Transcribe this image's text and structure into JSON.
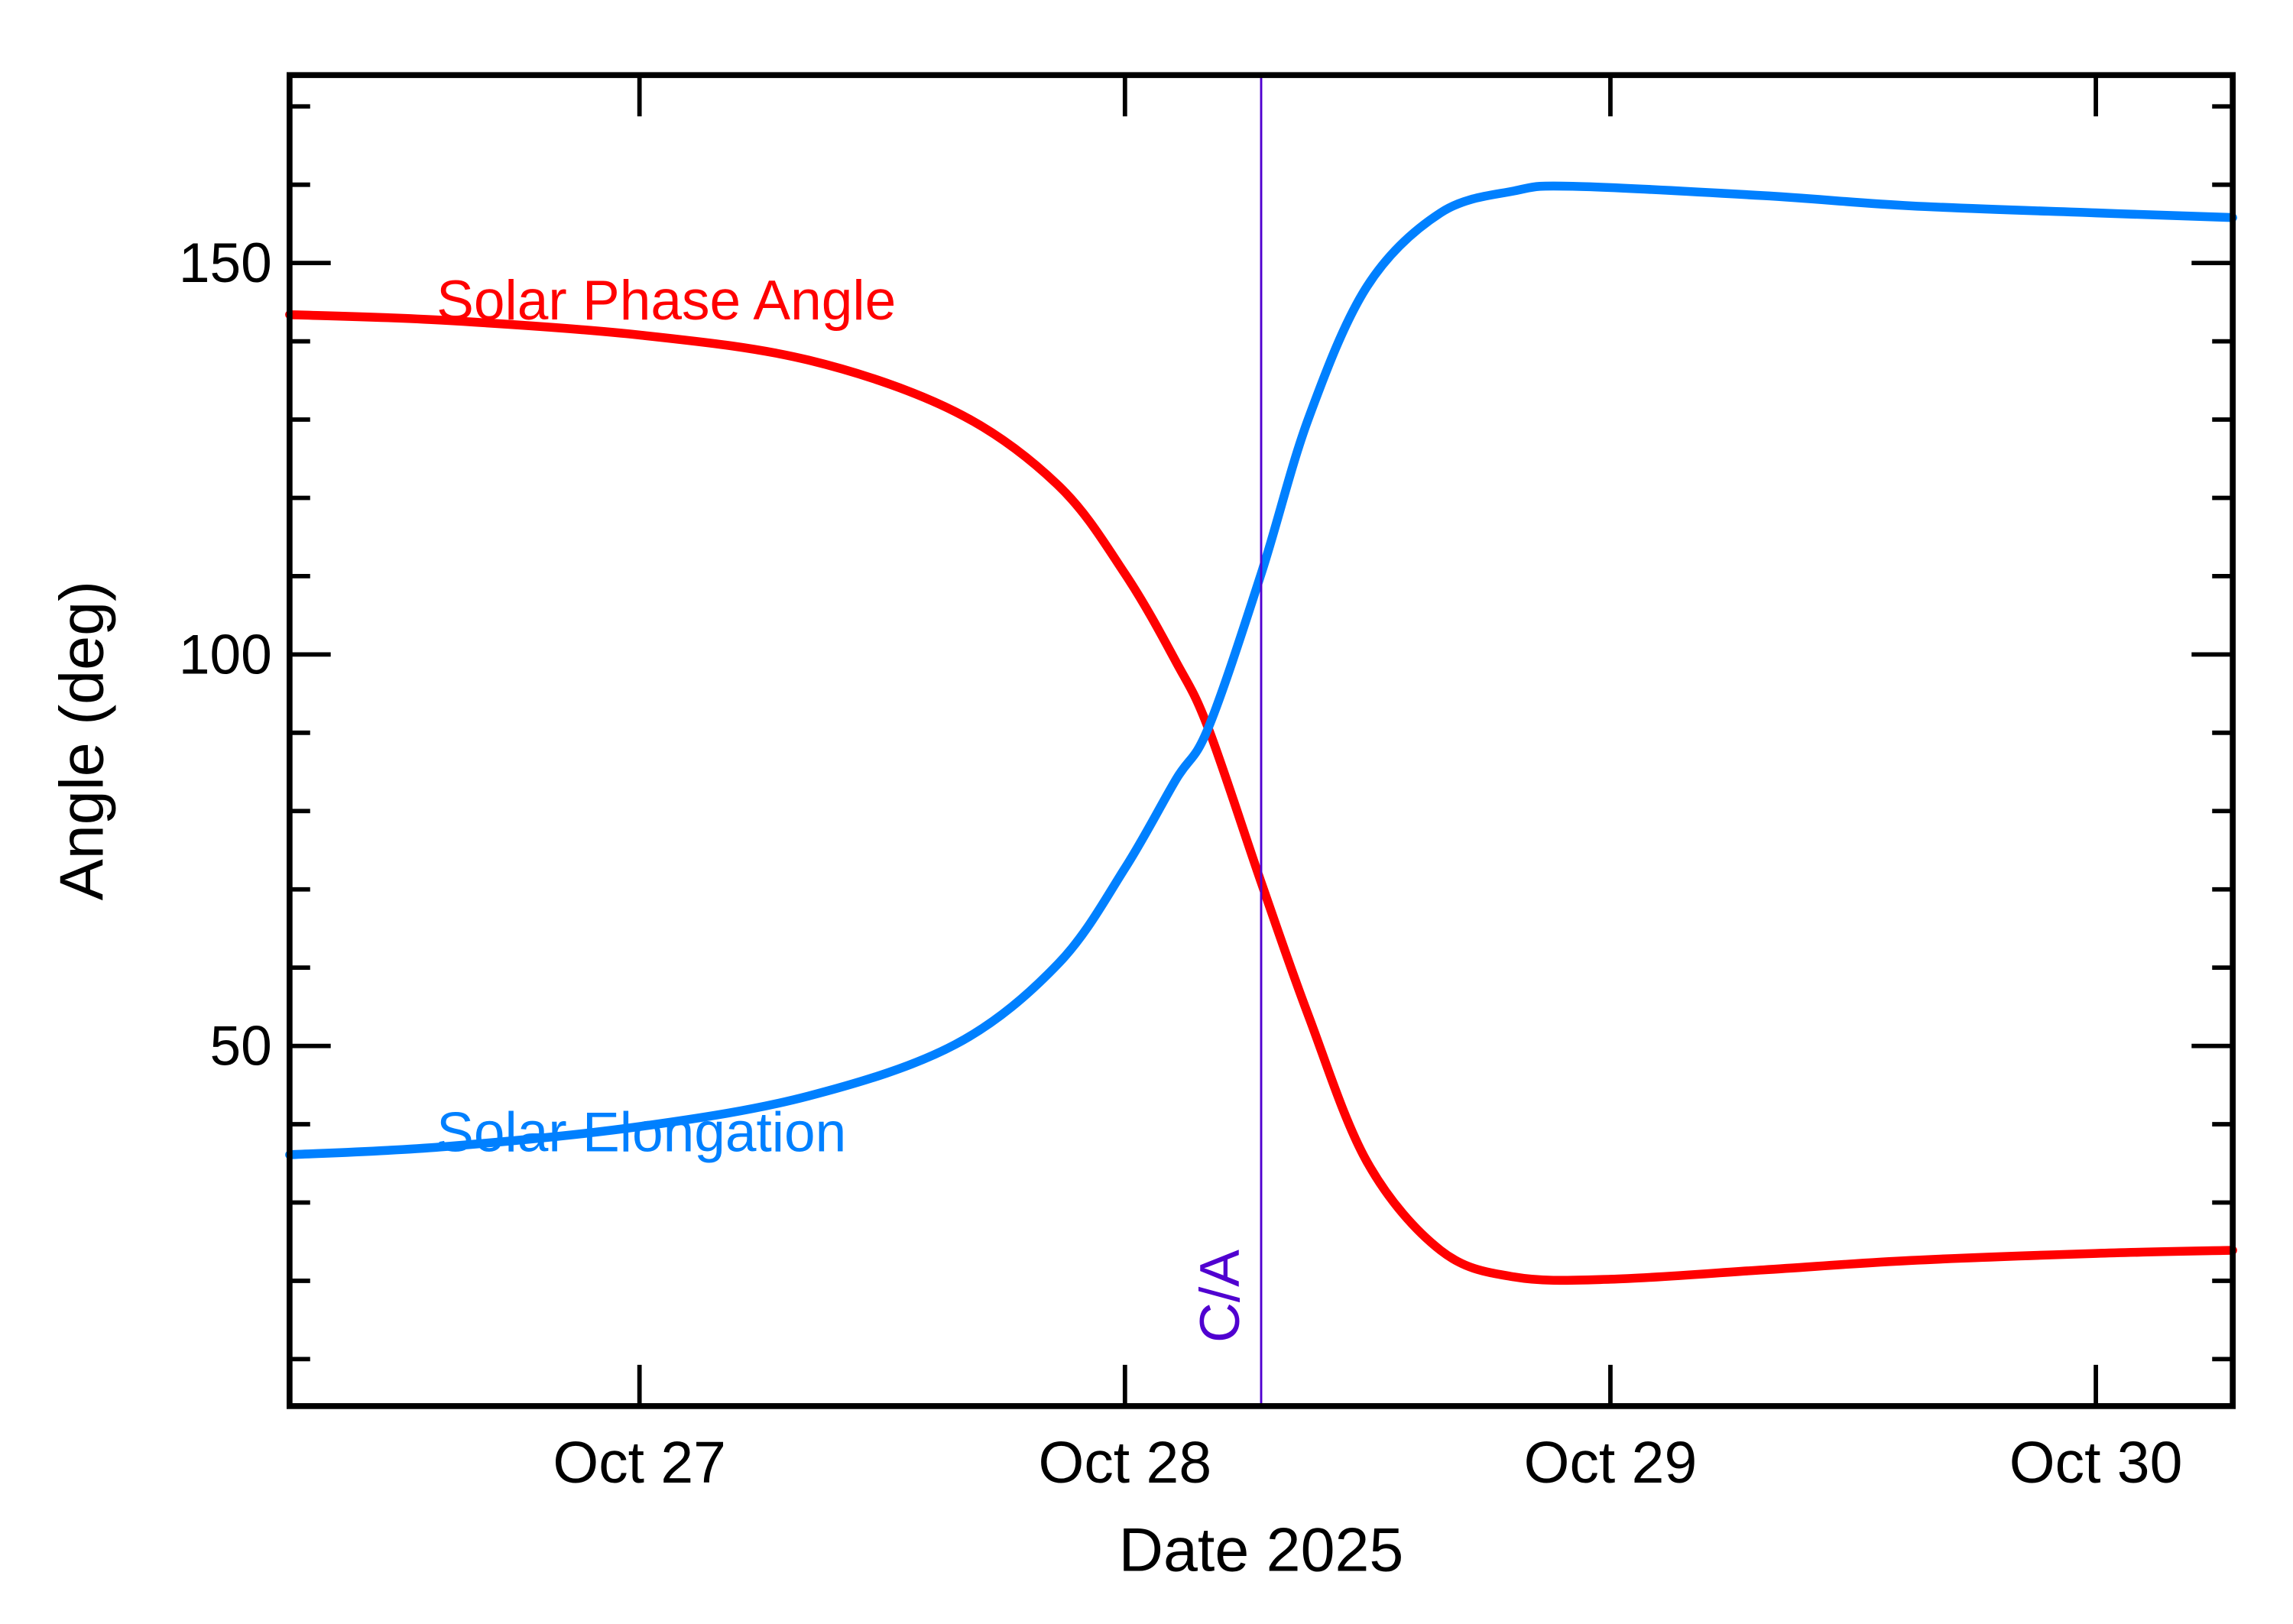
{
  "chart_data": {
    "type": "line",
    "title": "",
    "xlabel": "Date 2025",
    "ylabel": "Angle (deg)",
    "xlim": [
      "2025-10-26T06:42",
      "2025-10-30T06:46"
    ],
    "ylim": [
      4,
      174
    ],
    "x_ticks": [
      {
        "date": "2025-10-27T00:00",
        "label": "Oct 27"
      },
      {
        "date": "2025-10-28T00:00",
        "label": "Oct 28"
      },
      {
        "date": "2025-10-29T00:00",
        "label": "Oct 29"
      },
      {
        "date": "2025-10-30T00:00",
        "label": "Oct 30"
      }
    ],
    "y_ticks": [
      50,
      100,
      150
    ],
    "y_tick_labels": [
      "50",
      "100",
      "150"
    ],
    "y_minor_step": 10,
    "grid": false,
    "closest_approach": {
      "date": "2025-10-28T06:44",
      "label": "C/A",
      "color": "#5000d0"
    },
    "series": [
      {
        "name": "Solar Phase Angle",
        "color": "#ff0000",
        "points": [
          [
            "2025-10-26T06:42",
            143.4
          ],
          [
            "2025-10-26T14:11",
            142.7
          ],
          [
            "2025-10-27T00:00",
            140.8
          ],
          [
            "2025-10-27T08:21",
            137.6
          ],
          [
            "2025-10-27T15:37",
            131.0
          ],
          [
            "2025-10-27T20:42",
            121.6
          ],
          [
            "2025-10-28T00:00",
            110.3
          ],
          [
            "2025-10-28T02:31",
            99.1
          ],
          [
            "2025-10-28T04:07",
            90.6
          ],
          [
            "2025-10-28T06:44",
            70.9
          ],
          [
            "2025-10-28T09:04",
            53.9
          ],
          [
            "2025-10-28T11:58",
            35.2
          ],
          [
            "2025-10-28T15:36",
            23.9
          ],
          [
            "2025-10-28T19:14",
            20.5
          ],
          [
            "2025-10-29T00:00",
            20.2
          ],
          [
            "2025-10-29T07:35",
            21.4
          ],
          [
            "2025-10-29T14:51",
            22.6
          ],
          [
            "2025-10-30T00:00",
            23.5
          ],
          [
            "2025-10-30T06:46",
            23.9
          ]
        ]
      },
      {
        "name": "Solar Elongation",
        "color": "#0080ff",
        "points": [
          [
            "2025-10-26T06:42",
            36.1
          ],
          [
            "2025-10-26T14:11",
            37.1
          ],
          [
            "2025-10-27T00:00",
            39.7
          ],
          [
            "2025-10-27T08:21",
            43.6
          ],
          [
            "2025-10-27T15:37",
            50.2
          ],
          [
            "2025-10-27T20:42",
            60.5
          ],
          [
            "2025-10-28T00:00",
            72.7
          ],
          [
            "2025-10-28T02:31",
            84.0
          ],
          [
            "2025-10-28T04:07",
            90.6
          ],
          [
            "2025-10-28T06:44",
            110.3
          ],
          [
            "2025-10-28T09:04",
            130.1
          ],
          [
            "2025-10-28T11:58",
            147.0
          ],
          [
            "2025-10-28T15:36",
            156.4
          ],
          [
            "2025-10-28T19:14",
            159.2
          ],
          [
            "2025-10-28T22:08",
            159.8
          ],
          [
            "2025-10-29T07:35",
            158.6
          ],
          [
            "2025-10-29T14:51",
            157.3
          ],
          [
            "2025-10-30T00:00",
            156.4
          ],
          [
            "2025-10-30T06:46",
            155.8
          ]
        ]
      }
    ]
  }
}
